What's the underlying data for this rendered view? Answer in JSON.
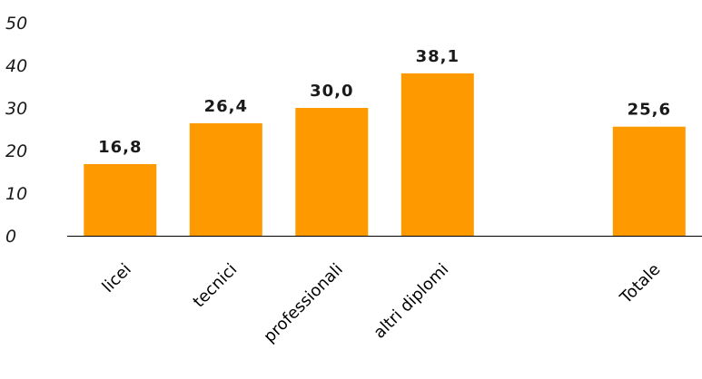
{
  "chart_data": {
    "type": "bar",
    "categories": [
      "licei",
      "tecnici",
      "professionali",
      "altri diplomi",
      "",
      "Totale"
    ],
    "values": [
      16.8,
      26.4,
      30.0,
      38.1,
      null,
      25.6
    ],
    "data_labels": [
      "16,8",
      "26,4",
      "30,0",
      "38,1",
      "",
      "25,6"
    ],
    "yticks": [
      "0",
      "10",
      "20",
      "30",
      "40",
      "50"
    ],
    "ylim": [
      0,
      50
    ],
    "title": "",
    "xlabel": "",
    "ylabel": "",
    "grid": false,
    "legend": "none",
    "bar_color": "#FF9900"
  }
}
